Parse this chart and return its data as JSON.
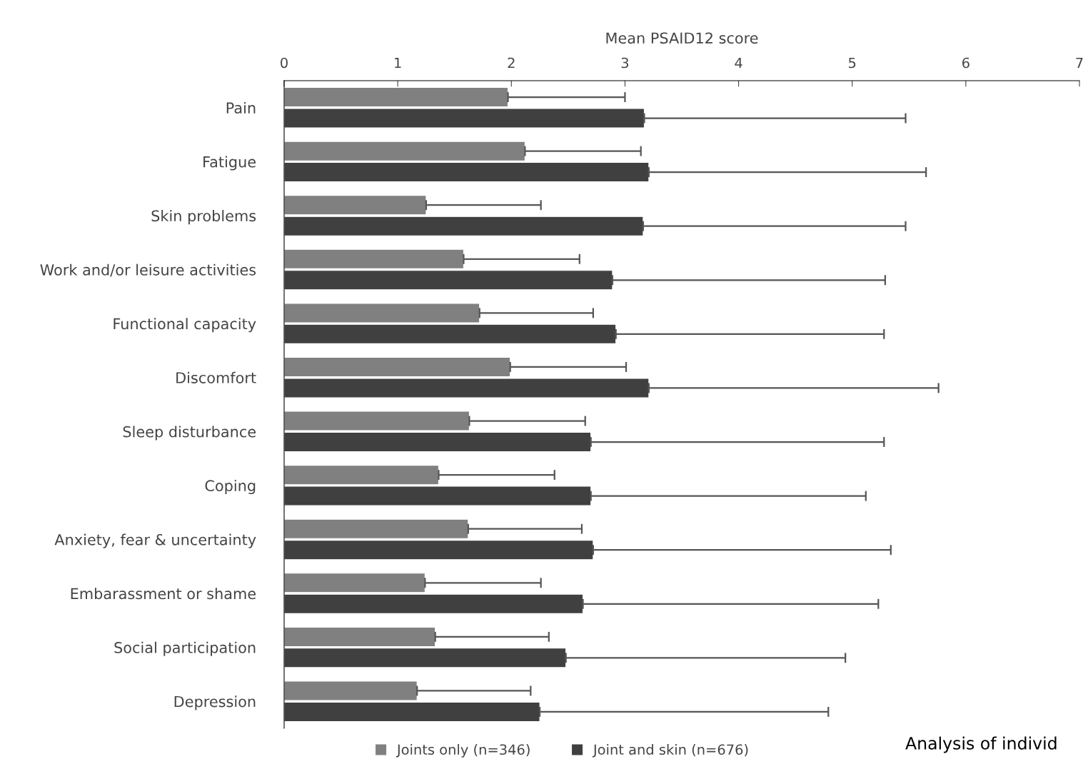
{
  "chart_data": {
    "type": "bar",
    "orientation": "horizontal",
    "xlabel": "Mean PSAID12 score",
    "categories": [
      "Pain",
      "Fatigue",
      "Skin problems",
      "Work and/or leisure activities",
      "Functional capacity",
      "Discomfort",
      "Sleep disturbance",
      "Coping",
      "Anxiety, fear & uncertainty",
      "Embarassment or shame",
      "Social participation",
      "Depression"
    ],
    "series": [
      {
        "name": "Joints only (n=346)",
        "color": "#808080",
        "values": [
          1.97,
          2.12,
          1.25,
          1.58,
          1.72,
          1.99,
          1.63,
          1.36,
          1.62,
          1.24,
          1.33,
          1.17
        ],
        "errors": [
          [
            1.97,
            3.0
          ],
          [
            2.12,
            3.14
          ],
          [
            1.25,
            2.26
          ],
          [
            1.58,
            2.6
          ],
          [
            1.72,
            2.72
          ],
          [
            1.99,
            3.01
          ],
          [
            1.63,
            2.65
          ],
          [
            1.36,
            2.38
          ],
          [
            1.62,
            2.62
          ],
          [
            1.24,
            2.26
          ],
          [
            1.33,
            2.33
          ],
          [
            1.17,
            2.17
          ]
        ]
      },
      {
        "name": "Joint and skin (n=676)",
        "color": "#404040",
        "values": [
          3.17,
          3.21,
          3.16,
          2.89,
          2.92,
          3.21,
          2.7,
          2.7,
          2.72,
          2.63,
          2.48,
          2.25
        ],
        "errors": [
          [
            3.17,
            5.47
          ],
          [
            3.21,
            5.65
          ],
          [
            3.16,
            5.47
          ],
          [
            2.89,
            5.29
          ],
          [
            2.92,
            5.28
          ],
          [
            3.21,
            5.76
          ],
          [
            2.7,
            5.28
          ],
          [
            2.7,
            5.12
          ],
          [
            2.72,
            5.34
          ],
          [
            2.63,
            5.23
          ],
          [
            2.48,
            4.94
          ],
          [
            2.25,
            4.79
          ]
        ]
      }
    ],
    "xlim": [
      0,
      7
    ],
    "xticks": [
      0,
      1,
      2,
      3,
      4,
      5,
      6,
      7
    ],
    "grid": false,
    "legend": "bottom",
    "annotations": [
      "Analysis of individ"
    ]
  }
}
